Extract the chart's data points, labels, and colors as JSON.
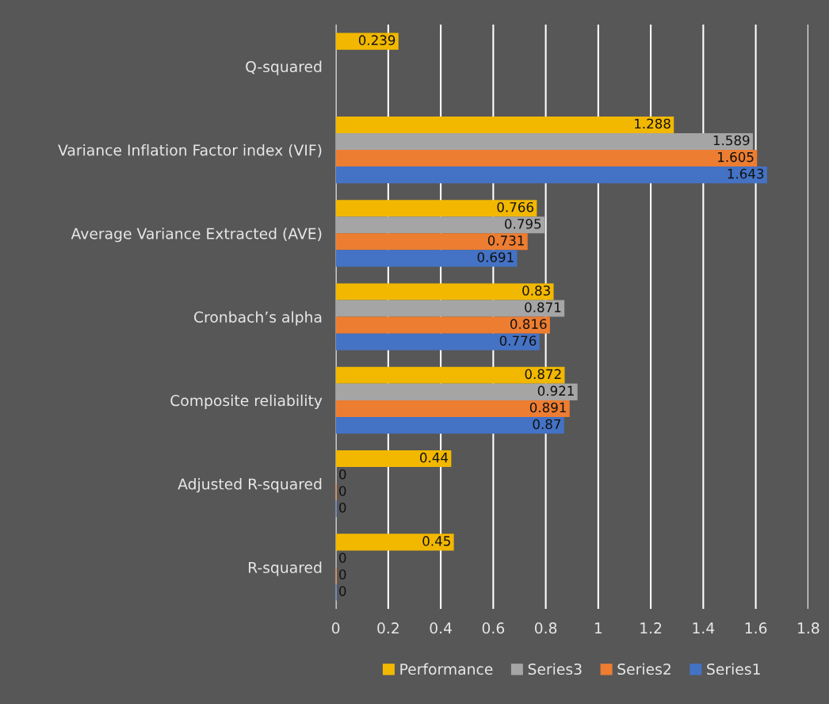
{
  "chart_data": {
    "type": "bar",
    "orientation": "horizontal",
    "categories": [
      "Q-squared",
      "Variance Inflation Factor index (VIF)",
      "Average Variance Extracted (AVE)",
      "Cronbach’s alpha",
      "Composite reliability",
      "Adjusted R-squared",
      "R-squared"
    ],
    "series": [
      {
        "name": "Performance",
        "color": "#f2b800",
        "values": [
          0.239,
          1.288,
          0.766,
          0.83,
          0.872,
          0.44,
          0.45
        ]
      },
      {
        "name": "Series3",
        "color": "#a5a5a5",
        "values": [
          null,
          1.589,
          0.795,
          0.871,
          0.921,
          0,
          0
        ]
      },
      {
        "name": "Series2",
        "color": "#ed7d31",
        "values": [
          null,
          1.605,
          0.731,
          0.816,
          0.891,
          0,
          0
        ]
      },
      {
        "name": "Series1",
        "color": "#4472c4",
        "values": [
          null,
          1.643,
          0.691,
          0.776,
          0.87,
          0,
          0
        ]
      }
    ],
    "xlim": [
      0,
      1.8
    ],
    "xticks": [
      0,
      0.2,
      0.4,
      0.6,
      0.8,
      1,
      1.2,
      1.4,
      1.6,
      1.8
    ],
    "grid": "x",
    "legend": "bottom",
    "data_labels": true
  }
}
